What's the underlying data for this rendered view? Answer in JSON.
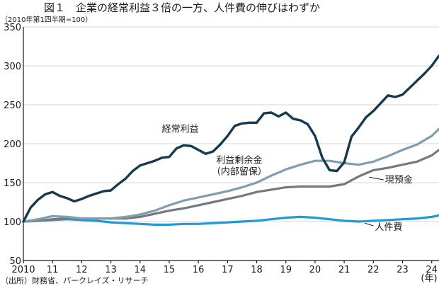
{
  "title": "図１　企業の経常利益３倍の一方、人件費の伸びはわずか",
  "unit_note": "（2010年第1四半期=100）",
  "source": "（出所）財務省、パークレイズ・リサーチ",
  "year_unit": "(年)",
  "colors": {
    "keijo": "#17394e",
    "rieki": "#7f9fb0",
    "yokin": "#75797b",
    "jinkenhi": "#1f9ad7"
  },
  "chart_data": {
    "type": "line",
    "title": "企業の経常利益３倍の一方、人件費の伸びはわずか",
    "ylabel": "2010年第1四半期=100",
    "xlabel": "(年)",
    "xlim": [
      2010,
      2024.25
    ],
    "ylim": [
      50,
      350
    ],
    "y_ticks": [
      50,
      100,
      150,
      200,
      250,
      300,
      350
    ],
    "x_ticks": [
      {
        "value": 2010,
        "label": "2010"
      },
      {
        "value": 2011,
        "label": "11"
      },
      {
        "value": 2012,
        "label": "12"
      },
      {
        "value": 2013,
        "label": "13"
      },
      {
        "value": 2014,
        "label": "14"
      },
      {
        "value": 2015,
        "label": "15"
      },
      {
        "value": 2016,
        "label": "16"
      },
      {
        "value": 2017,
        "label": "17"
      },
      {
        "value": 2018,
        "label": "18"
      },
      {
        "value": 2019,
        "label": "19"
      },
      {
        "value": 2020,
        "label": "20"
      },
      {
        "value": 2021,
        "label": "21"
      },
      {
        "value": 2022,
        "label": "22"
      },
      {
        "value": 2023,
        "label": "23"
      },
      {
        "value": 2024,
        "label": "24"
      }
    ],
    "grid": true,
    "series": [
      {
        "key": "keijo",
        "name": "経常利益",
        "x": [
          2010,
          2010.25,
          2010.5,
          2010.75,
          2011,
          2011.25,
          2011.5,
          2011.75,
          2012,
          2012.25,
          2012.5,
          2012.75,
          2013,
          2013.25,
          2013.5,
          2013.75,
          2014,
          2014.25,
          2014.5,
          2014.75,
          2015,
          2015.25,
          2015.5,
          2015.75,
          2016,
          2016.25,
          2016.5,
          2016.75,
          2017,
          2017.25,
          2017.5,
          2017.75,
          2018,
          2018.25,
          2018.5,
          2018.75,
          2019,
          2019.25,
          2019.5,
          2019.75,
          2020,
          2020.25,
          2020.5,
          2020.75,
          2021,
          2021.25,
          2021.5,
          2021.75,
          2022,
          2022.25,
          2022.5,
          2022.75,
          2023,
          2023.25,
          2023.5,
          2023.75,
          2024,
          2024.25
        ],
        "y": [
          100,
          118,
          128,
          135,
          138,
          133,
          130,
          126,
          129,
          133,
          136,
          139,
          140,
          148,
          155,
          165,
          172,
          175,
          178,
          182,
          183,
          194,
          198,
          197,
          192,
          187,
          190,
          199,
          210,
          223,
          226,
          227,
          227,
          239,
          240,
          235,
          240,
          232,
          230,
          225,
          210,
          182,
          166,
          165,
          176,
          209,
          221,
          234,
          242,
          252,
          262,
          260,
          263,
          272,
          281,
          290,
          300,
          313
        ]
      },
      {
        "key": "rieki",
        "name": "利益剰余金",
        "name_line2": "（内部留保）",
        "x": [
          2010,
          2010.5,
          2011,
          2011.5,
          2012,
          2012.5,
          2013,
          2013.5,
          2014,
          2014.5,
          2015,
          2015.5,
          2016,
          2016.5,
          2017,
          2017.5,
          2018,
          2018.5,
          2019,
          2019.5,
          2020,
          2020.5,
          2021,
          2021.5,
          2022,
          2022.5,
          2023,
          2023.5,
          2024,
          2024.25
        ],
        "y": [
          100,
          103,
          107,
          106,
          104,
          104,
          104,
          106,
          109,
          114,
          121,
          127,
          131,
          135,
          139,
          144,
          150,
          159,
          167,
          173,
          178,
          178,
          175,
          173,
          177,
          184,
          192,
          199,
          210,
          219
        ]
      },
      {
        "key": "yokin",
        "name": "現預金",
        "x": [
          2010,
          2010.5,
          2011,
          2011.5,
          2012,
          2012.5,
          2013,
          2013.5,
          2014,
          2014.5,
          2015,
          2015.5,
          2016,
          2016.5,
          2017,
          2017.5,
          2018,
          2018.5,
          2019,
          2019.5,
          2020,
          2020.5,
          2021,
          2021.5,
          2022,
          2022.5,
          2023,
          2023.5,
          2024,
          2024.25
        ],
        "y": [
          100,
          101,
          103,
          104,
          104,
          104,
          104,
          104,
          106,
          110,
          114,
          117,
          121,
          125,
          129,
          133,
          138,
          141,
          144,
          145,
          145,
          145,
          148,
          158,
          166,
          169,
          173,
          177,
          185,
          192
        ]
      },
      {
        "key": "jinkenhi",
        "name": "人件費",
        "x": [
          2010,
          2010.5,
          2011,
          2011.5,
          2012,
          2012.5,
          2013,
          2013.5,
          2014,
          2014.5,
          2015,
          2015.5,
          2016,
          2016.5,
          2017,
          2017.5,
          2018,
          2018.5,
          2019,
          2019.5,
          2020,
          2020.5,
          2021,
          2021.5,
          2022,
          2022.5,
          2023,
          2023.5,
          2024,
          2024.25
        ],
        "y": [
          100,
          101,
          102,
          103,
          102,
          101,
          99,
          98,
          97,
          96,
          96,
          97,
          97,
          98,
          99,
          100,
          101,
          103,
          105,
          106,
          105,
          103,
          101,
          100,
          101,
          102,
          103,
          104,
          106,
          108
        ]
      }
    ],
    "annotations": [
      {
        "series": "keijo",
        "text": "経常利益",
        "x": 2014.75,
        "y": 215
      },
      {
        "series": "rieki",
        "text": "利益剰余金",
        "text_line2": "（内部留保）",
        "x": 2017.4,
        "y": 175
      },
      {
        "series": "yokin",
        "text": "現預金",
        "x": 2022.4,
        "y": 150
      },
      {
        "series": "jinkenhi",
        "text": "人件費",
        "x": 2022.05,
        "y": 89
      }
    ]
  }
}
